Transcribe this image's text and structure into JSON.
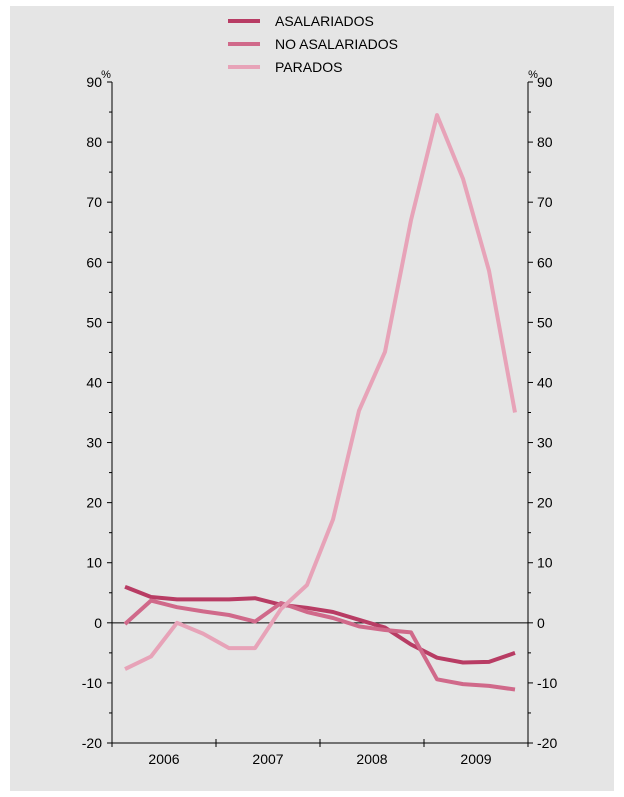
{
  "chart_data": {
    "type": "line",
    "x": [
      "2006-I",
      "2006-II",
      "2006-III",
      "2006-IV",
      "2007-I",
      "2007-II",
      "2007-III",
      "2007-IV",
      "2008-I",
      "2008-II",
      "2008-III",
      "2008-IV",
      "2009-I",
      "2009-II",
      "2009-III",
      "2009-IV"
    ],
    "x_tick_labels": [
      "2006",
      "2007",
      "2008",
      "2009"
    ],
    "y_left_unit": "%",
    "y_right_unit": "%",
    "ylim": [
      -20,
      90
    ],
    "yticks": [
      -20,
      -10,
      0,
      10,
      20,
      30,
      40,
      50,
      60,
      70,
      80,
      90
    ],
    "legend_position": "top",
    "series": [
      {
        "name": "ASALARIADOS",
        "color": "#b83c64",
        "values": [
          6.0,
          4.3,
          3.9,
          3.9,
          3.9,
          4.1,
          3.0,
          2.5,
          1.8,
          0.5,
          -0.8,
          -3.6,
          -5.8,
          -6.6,
          -6.5,
          -5.0
        ]
      },
      {
        "name": "NO ASALARIADOS",
        "color": "#d0698a",
        "values": [
          -0.2,
          3.7,
          2.6,
          1.9,
          1.3,
          0.2,
          3.3,
          1.8,
          0.8,
          -0.6,
          -1.2,
          -1.6,
          -9.4,
          -10.2,
          -10.5,
          -11.1
        ]
      },
      {
        "name": "PARADOS",
        "color": "#e7a3b8",
        "values": [
          -7.7,
          -5.6,
          0.0,
          -1.8,
          -4.2,
          -4.2,
          2.3,
          6.3,
          17.2,
          35.3,
          45.1,
          67.0,
          84.5,
          73.9,
          58.6,
          35.0
        ]
      }
    ]
  }
}
